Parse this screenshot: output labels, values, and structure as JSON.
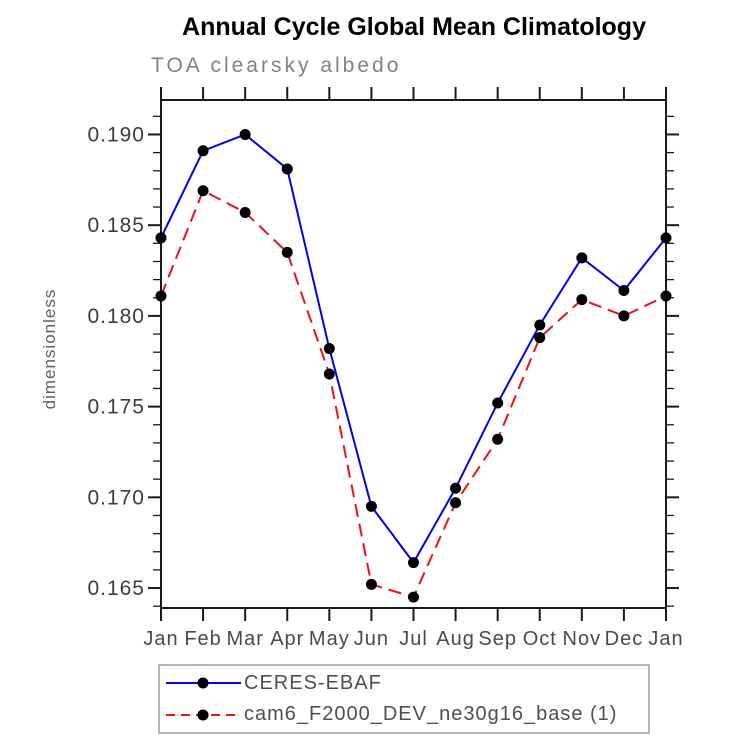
{
  "title": "Annual Cycle Global Mean Climatology",
  "subtitle": "TOA clearsky albedo",
  "ylabel": "dimensionless",
  "chart_data": {
    "type": "line",
    "categories": [
      "Jan",
      "Feb",
      "Mar",
      "Apr",
      "May",
      "Jun",
      "Jul",
      "Aug",
      "Sep",
      "Oct",
      "Nov",
      "Dec",
      "Jan"
    ],
    "series": [
      {
        "name": "CERES-EBAF",
        "color": "#0000ee",
        "line_style": "solid",
        "marker": "circle",
        "marker_color": "#000000",
        "values": [
          0.1843,
          0.1891,
          0.19,
          0.1881,
          0.1782,
          0.1695,
          0.1664,
          0.1705,
          0.1752,
          0.1795,
          0.1832,
          0.1814,
          0.1843
        ]
      },
      {
        "name": "cam6_F2000_DEV_ne30g16_base (1)",
        "color": "#ee1111",
        "line_style": "dashed",
        "marker": "circle",
        "marker_color": "#000000",
        "values": [
          0.1811,
          0.1869,
          0.1857,
          0.1835,
          0.1768,
          0.1652,
          0.1645,
          0.1697,
          0.1732,
          0.1788,
          0.1809,
          0.18,
          0.1811
        ]
      }
    ],
    "ylim": [
      0.1639,
      0.1919
    ],
    "ytick_major_step": 0.005,
    "ytick_minor_step": 0.001,
    "ytick_labels": [
      "0.165",
      "0.170",
      "0.175",
      "0.180",
      "0.185",
      "0.190"
    ],
    "xlabel": "",
    "grid": false,
    "legend_position": "bottom"
  },
  "style": {
    "axis_color": "#1a1a1a",
    "tick_label_color": "#3d3d3d",
    "month_label_color": "#4a4a4a",
    "subtitle_color": "#828282",
    "legend_border_color": "#b5b5b5",
    "legend_text_color": "#4f4f4f"
  }
}
